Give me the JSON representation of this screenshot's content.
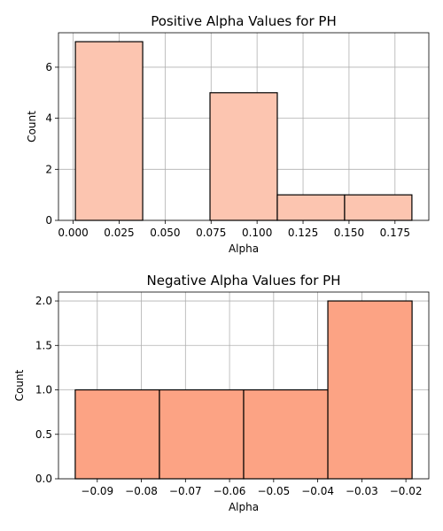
{
  "chart_data": [
    {
      "type": "bar",
      "title": "Positive Alpha Values for PH",
      "xlabel": "Alpha",
      "ylabel": "Count",
      "bins": [
        {
          "x0": 0.0012,
          "x1": 0.0378,
          "count": 7
        },
        {
          "x0": 0.0378,
          "x1": 0.0744,
          "count": 0
        },
        {
          "x0": 0.0744,
          "x1": 0.111,
          "count": 5
        },
        {
          "x0": 0.111,
          "x1": 0.1476,
          "count": 1
        },
        {
          "x0": 0.1476,
          "x1": 0.1842,
          "count": 1
        }
      ],
      "xlim": [
        -0.008,
        0.1934
      ],
      "ylim": [
        0,
        7.35
      ],
      "xticks": [
        0.0,
        0.025,
        0.05,
        0.075,
        0.1,
        0.125,
        0.15,
        0.175
      ],
      "xtick_labels": [
        "0.000",
        "0.025",
        "0.050",
        "0.075",
        "0.100",
        "0.125",
        "0.150",
        "0.175"
      ],
      "yticks": [
        0,
        2,
        4,
        6
      ],
      "ytick_labels": [
        "0",
        "2",
        "4",
        "6"
      ],
      "grid": true,
      "color": "#fcc5b0"
    },
    {
      "type": "bar",
      "title": "Negative Alpha Values for PH",
      "xlabel": "Alpha",
      "ylabel": "Count",
      "bins": [
        {
          "x0": -0.095,
          "x1": -0.0759,
          "count": 1
        },
        {
          "x0": -0.0759,
          "x1": -0.0568,
          "count": 1
        },
        {
          "x0": -0.0568,
          "x1": -0.0377,
          "count": 1
        },
        {
          "x0": -0.0377,
          "x1": -0.0186,
          "count": 2
        }
      ],
      "xlim": [
        -0.0988,
        -0.0148
      ],
      "ylim": [
        0,
        2.1
      ],
      "xticks": [
        -0.09,
        -0.08,
        -0.07,
        -0.06,
        -0.05,
        -0.04,
        -0.03,
        -0.02
      ],
      "xtick_labels": [
        "−0.09",
        "−0.08",
        "−0.07",
        "−0.06",
        "−0.05",
        "−0.04",
        "−0.03",
        "−0.02"
      ],
      "yticks": [
        0,
        0.5,
        1.0,
        1.5,
        2.0
      ],
      "ytick_labels": [
        "0.0",
        "0.5",
        "1.0",
        "1.5",
        "2.0"
      ],
      "grid": true,
      "color": "#fca384"
    }
  ]
}
